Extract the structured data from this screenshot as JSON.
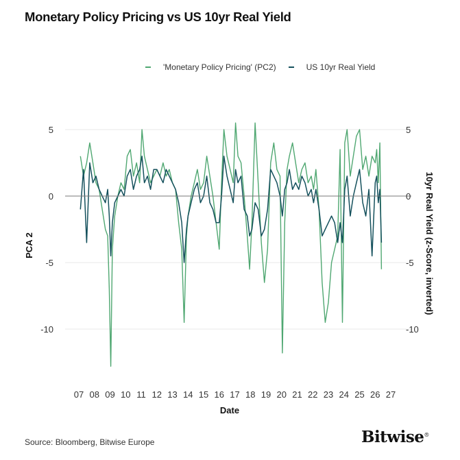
{
  "title": "Monetary Policy Pricing vs US 10yr Real Yield",
  "source": "Source: Bloomberg, Bitwise Europe",
  "brand": "Bitwise",
  "brand_mark": "®",
  "colors": {
    "pc2": "#4fa771",
    "real_yield": "#14505c",
    "zero_line": "#777777",
    "grid": "#e9e9e9"
  },
  "chart_data": {
    "type": "line",
    "xlabel": "Date",
    "ylabel": "PCA 2",
    "y2label": "10yr Real Yield (z-Score, inverted)",
    "x_ticks": [
      "07",
      "08",
      "09",
      "10",
      "11",
      "12",
      "13",
      "14",
      "15",
      "16",
      "17",
      "18",
      "19",
      "20",
      "21",
      "22",
      "23",
      "24",
      "25",
      "26",
      "27"
    ],
    "x_range": [
      2007,
      2027
    ],
    "ylim": [
      -13,
      6
    ],
    "y_ticks": [
      5,
      0,
      -5,
      -10
    ],
    "y2_ticks": [
      5,
      0,
      -5,
      -10
    ],
    "series": [
      {
        "name": "'Monetary Policy Pricing' (PC2)",
        "axis": "left",
        "x": [
          2007.1,
          2007.3,
          2007.5,
          2007.7,
          2007.9,
          2008.1,
          2008.3,
          2008.5,
          2008.7,
          2008.85,
          2008.95,
          2009.05,
          2009.15,
          2009.3,
          2009.5,
          2009.7,
          2009.9,
          2010.1,
          2010.3,
          2010.5,
          2010.7,
          2010.9,
          2011.05,
          2011.2,
          2011.4,
          2011.6,
          2011.8,
          2012.0,
          2012.2,
          2012.4,
          2012.6,
          2012.8,
          2013.0,
          2013.2,
          2013.4,
          2013.6,
          2013.75,
          2013.9,
          2014.0,
          2014.2,
          2014.4,
          2014.6,
          2014.8,
          2015.0,
          2015.2,
          2015.4,
          2015.6,
          2015.8,
          2016.0,
          2016.15,
          2016.3,
          2016.5,
          2016.7,
          2016.9,
          2017.05,
          2017.2,
          2017.4,
          2017.6,
          2017.8,
          2017.95,
          2018.1,
          2018.3,
          2018.5,
          2018.7,
          2018.9,
          2019.1,
          2019.3,
          2019.5,
          2019.7,
          2019.9,
          2020.05,
          2020.2,
          2020.35,
          2020.5,
          2020.7,
          2020.9,
          2021.1,
          2021.3,
          2021.5,
          2021.7,
          2021.9,
          2022.05,
          2022.2,
          2022.4,
          2022.6,
          2022.8,
          2023.0,
          2023.2,
          2023.4,
          2023.6,
          2023.75,
          2023.9,
          2024.05,
          2024.2,
          2024.4,
          2024.6,
          2024.8,
          2025.0,
          2025.2,
          2025.4,
          2025.6,
          2025.8,
          2026.0,
          2026.1,
          2026.2,
          2026.3,
          2026.4
        ],
        "y": [
          3.0,
          1.5,
          2.5,
          4.0,
          2.5,
          1.0,
          0.5,
          -1.0,
          -2.5,
          -3.0,
          -7.0,
          -12.8,
          -4.0,
          -1.5,
          0.0,
          1.0,
          0.5,
          3.0,
          3.5,
          1.5,
          2.5,
          1.0,
          5.0,
          3.0,
          2.0,
          1.0,
          1.5,
          2.0,
          1.5,
          2.5,
          1.5,
          2.0,
          1.0,
          0.5,
          -2.0,
          -4.0,
          -9.5,
          -3.0,
          -1.5,
          0.0,
          1.0,
          2.0,
          0.5,
          1.0,
          3.0,
          1.5,
          0.0,
          -2.0,
          -4.0,
          1.0,
          5.0,
          3.0,
          2.0,
          1.0,
          5.5,
          3.0,
          2.5,
          0.0,
          -3.0,
          -5.5,
          -2.0,
          5.5,
          1.0,
          -3.5,
          -6.5,
          -4.0,
          2.5,
          4.0,
          2.0,
          1.5,
          -11.8,
          -2.0,
          2.0,
          3.0,
          4.0,
          2.5,
          1.0,
          2.0,
          2.5,
          1.0,
          1.5,
          0.5,
          2.0,
          -1.0,
          -6.5,
          -9.5,
          -8.0,
          -5.0,
          -4.0,
          -3.0,
          3.5,
          -9.5,
          4.0,
          5.0,
          1.5,
          3.0,
          4.5,
          5.0,
          2.0,
          3.0,
          1.5,
          3.0,
          2.5,
          3.5,
          1.0,
          4.0,
          -5.5
        ]
      },
      {
        "name": "US 10yr Real Yield",
        "axis": "right",
        "x": [
          2007.1,
          2007.3,
          2007.5,
          2007.7,
          2007.9,
          2008.1,
          2008.3,
          2008.5,
          2008.7,
          2008.85,
          2008.95,
          2009.05,
          2009.15,
          2009.3,
          2009.5,
          2009.7,
          2009.9,
          2010.1,
          2010.3,
          2010.5,
          2010.7,
          2010.9,
          2011.05,
          2011.2,
          2011.4,
          2011.6,
          2011.8,
          2012.0,
          2012.2,
          2012.4,
          2012.6,
          2012.8,
          2013.0,
          2013.2,
          2013.4,
          2013.6,
          2013.75,
          2013.9,
          2014.0,
          2014.2,
          2014.4,
          2014.6,
          2014.8,
          2015.0,
          2015.2,
          2015.4,
          2015.6,
          2015.8,
          2016.0,
          2016.15,
          2016.3,
          2016.5,
          2016.7,
          2016.9,
          2017.05,
          2017.2,
          2017.4,
          2017.6,
          2017.8,
          2017.95,
          2018.1,
          2018.3,
          2018.5,
          2018.7,
          2018.9,
          2019.1,
          2019.3,
          2019.5,
          2019.7,
          2019.9,
          2020.05,
          2020.2,
          2020.35,
          2020.5,
          2020.7,
          2020.9,
          2021.1,
          2021.3,
          2021.5,
          2021.7,
          2021.9,
          2022.05,
          2022.2,
          2022.4,
          2022.6,
          2022.8,
          2023.0,
          2023.2,
          2023.4,
          2023.6,
          2023.75,
          2023.9,
          2024.05,
          2024.2,
          2024.4,
          2024.6,
          2024.8,
          2025.0,
          2025.2,
          2025.4,
          2025.6,
          2025.8,
          2026.0,
          2026.1,
          2026.2,
          2026.3,
          2026.4
        ],
        "y": [
          -1.0,
          2.0,
          -3.5,
          2.5,
          1.0,
          1.5,
          0.5,
          0.0,
          -0.5,
          0.5,
          -1.5,
          -4.5,
          -2.0,
          -0.5,
          0.0,
          0.5,
          0.0,
          1.5,
          2.0,
          0.5,
          1.5,
          2.0,
          3.0,
          1.0,
          1.5,
          0.5,
          2.0,
          2.0,
          1.5,
          1.0,
          2.0,
          1.5,
          1.0,
          0.5,
          -0.5,
          -2.0,
          -5.0,
          -2.5,
          -1.5,
          -0.5,
          0.5,
          1.0,
          -0.5,
          0.0,
          1.5,
          -0.5,
          -1.0,
          -2.0,
          -2.0,
          0.0,
          3.0,
          1.5,
          0.5,
          -0.5,
          2.0,
          1.0,
          1.5,
          -1.0,
          -1.5,
          -3.0,
          -2.5,
          -0.5,
          -1.0,
          -3.0,
          -2.5,
          -1.0,
          2.0,
          1.5,
          1.0,
          0.0,
          -1.5,
          0.5,
          1.0,
          2.0,
          0.5,
          1.0,
          0.5,
          1.5,
          1.0,
          0.0,
          0.5,
          -0.5,
          0.5,
          -1.0,
          -3.0,
          -2.5,
          -2.0,
          -1.5,
          -2.0,
          -3.5,
          -2.0,
          -3.5,
          0.5,
          1.5,
          -1.5,
          0.0,
          1.0,
          2.0,
          -0.5,
          -1.5,
          0.5,
          -4.5,
          1.0,
          1.5,
          -0.5,
          0.5,
          -3.5
        ]
      }
    ]
  }
}
